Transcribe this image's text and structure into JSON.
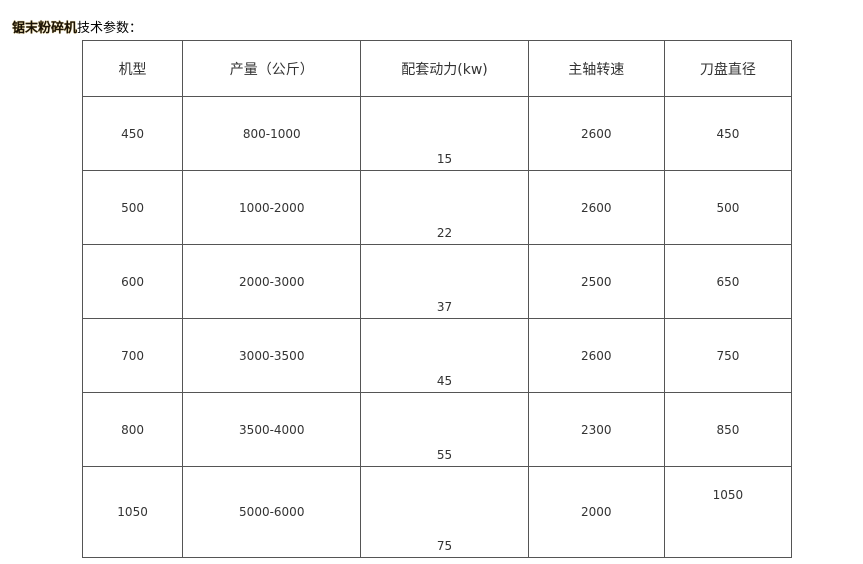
{
  "title": {
    "bold": "锯末粉碎机",
    "rest": "技术参数："
  },
  "headers": [
    "机型",
    "产量（公斤）",
    "配套动力(kw)",
    "主轴转速",
    "刀盘直径"
  ],
  "rows": [
    [
      "450",
      "800-1000",
      "15",
      "2600",
      "450"
    ],
    [
      "500",
      "1000-2000",
      "22",
      "2600",
      "500"
    ],
    [
      "600",
      "2000-3000",
      "37",
      "2500",
      "650"
    ],
    [
      "700",
      "3000-3500",
      "45",
      "2600",
      "750"
    ],
    [
      "800",
      "3500-4000",
      "55",
      "2300",
      "850"
    ],
    [
      "1050",
      "5000-6000",
      "75",
      "2000",
      "1050"
    ]
  ]
}
